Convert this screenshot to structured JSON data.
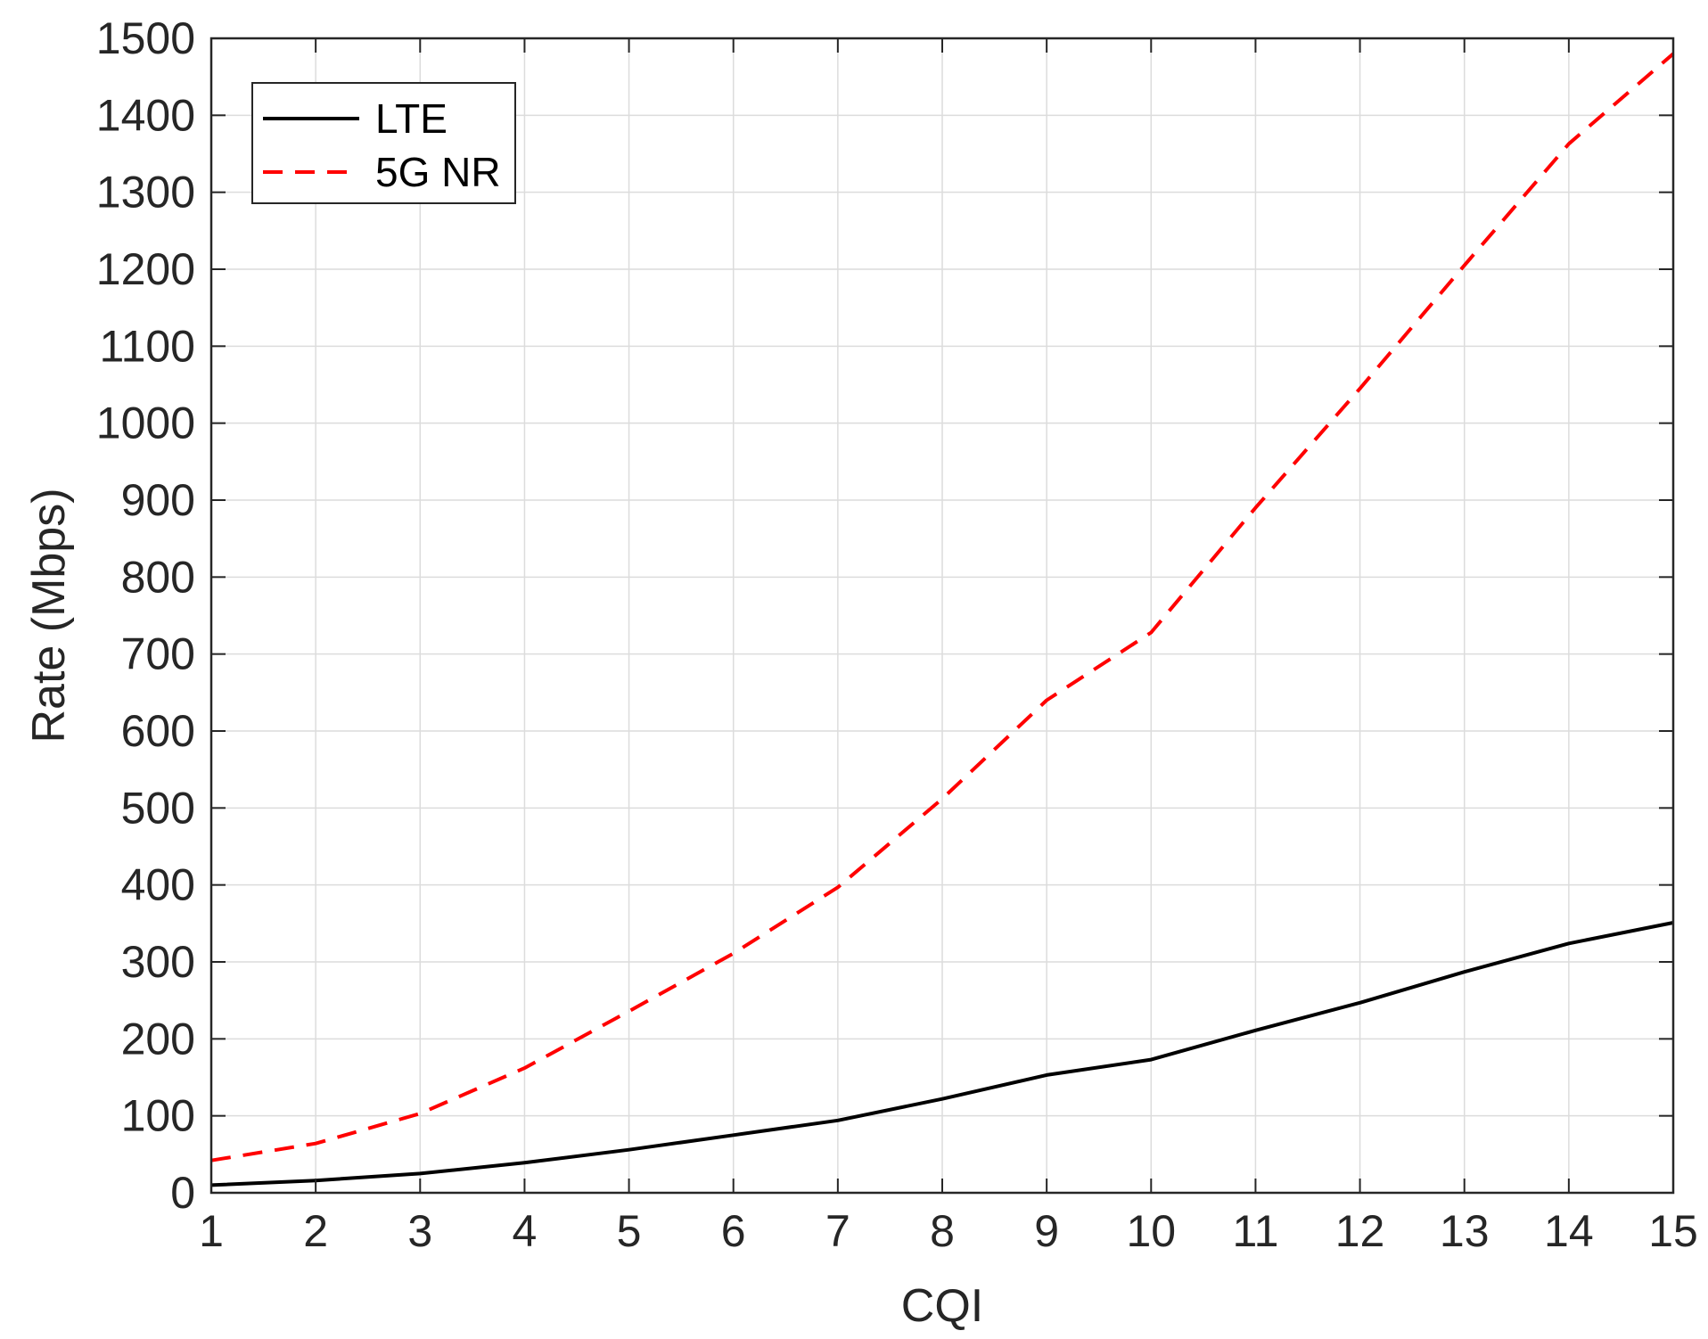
{
  "chart_data": {
    "type": "line",
    "title": "",
    "xlabel": "CQI",
    "ylabel": "Rate (Mbps)",
    "xlim": [
      1,
      15
    ],
    "ylim": [
      0,
      1500
    ],
    "xticks": [
      1,
      2,
      3,
      4,
      5,
      6,
      7,
      8,
      9,
      10,
      11,
      12,
      13,
      14,
      15
    ],
    "yticks": [
      0,
      100,
      200,
      300,
      400,
      500,
      600,
      700,
      800,
      900,
      1000,
      1100,
      1200,
      1300,
      1400,
      1500
    ],
    "grid": true,
    "legend_position": "top-left",
    "x": [
      1,
      2,
      3,
      4,
      5,
      6,
      7,
      8,
      9,
      10,
      11,
      12,
      13,
      14,
      15
    ],
    "series": [
      {
        "name": "LTE",
        "color": "#000000",
        "style": "solid",
        "values": [
          10,
          16,
          25,
          39,
          56,
          75,
          94,
          122,
          153,
          173,
          211,
          247,
          287,
          324,
          351
        ]
      },
      {
        "name": "5G NR",
        "color": "#ff0000",
        "style": "dashed",
        "values": [
          42,
          64,
          103,
          162,
          236,
          311,
          397,
          512,
          640,
          728,
          890,
          1045,
          1205,
          1363,
          1480
        ]
      }
    ]
  }
}
